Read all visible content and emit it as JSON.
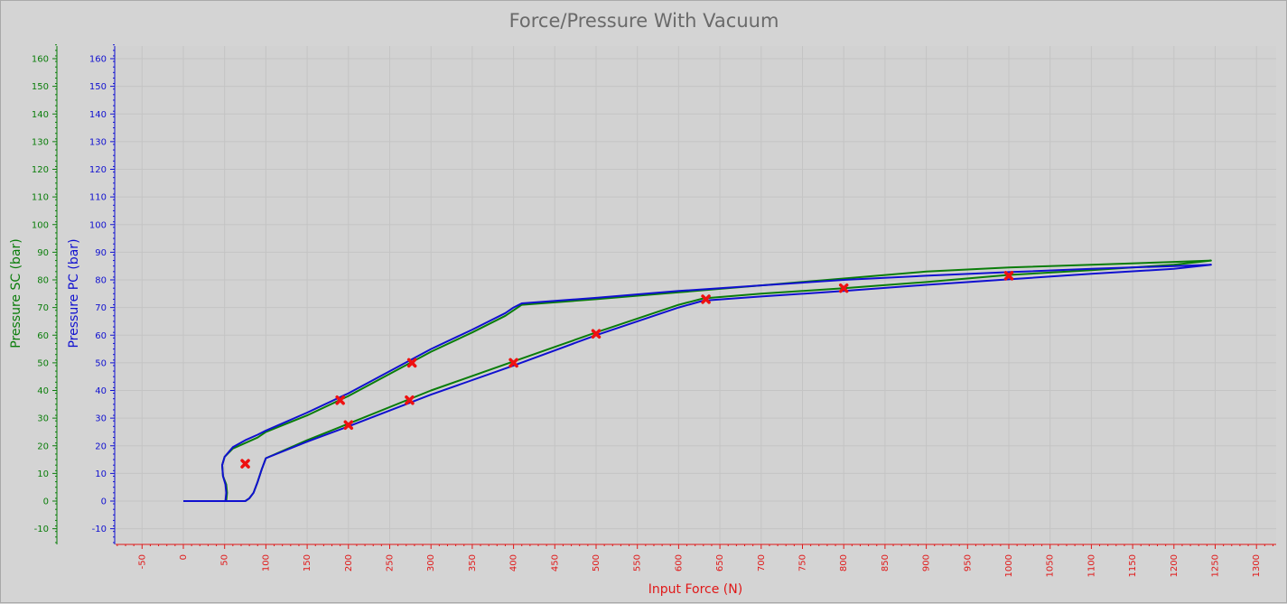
{
  "chart_data": {
    "type": "line",
    "title": "Force/Pressure With Vacuum",
    "xlabel": "Input Force (N)",
    "ylabel_left_outer": "Pressure SC (bar)",
    "ylabel_left_inner": "Pressure PC (bar)",
    "xlim": [
      -80,
      1340
    ],
    "ylim": [
      -15,
      165
    ],
    "x_ticks": [
      -50,
      0,
      50,
      100,
      150,
      200,
      250,
      300,
      350,
      400,
      450,
      500,
      550,
      600,
      650,
      700,
      750,
      800,
      850,
      900,
      950,
      1000,
      1050,
      1100,
      1150,
      1200,
      1250,
      1300
    ],
    "y_ticks": [
      -10,
      0,
      10,
      20,
      30,
      40,
      50,
      60,
      70,
      80,
      90,
      100,
      110,
      120,
      130,
      140,
      150,
      160
    ],
    "grid": true,
    "colors": {
      "sc": "#0a7d0a",
      "pc": "#1010d0",
      "x_axis": "#e01818",
      "markers": "#ee1111",
      "title": "#6a6a6a"
    },
    "series": [
      {
        "axis": "sc",
        "x": [
          0,
          40,
          52,
          53,
          52,
          48,
          47,
          50,
          60,
          75,
          90,
          100,
          150,
          200,
          250,
          300,
          350,
          390,
          400,
          410,
          500,
          600,
          700,
          800,
          900,
          1000,
          1100,
          1200,
          1245,
          1200,
          1100,
          1000,
          900,
          800,
          700,
          630,
          600,
          500,
          400,
          300,
          200,
          150,
          100,
          95,
          90,
          85,
          80,
          75,
          70,
          55,
          0
        ],
        "y": [
          0,
          0,
          0,
          3,
          6,
          9,
          13,
          16,
          19,
          21,
          23,
          25,
          31,
          38,
          46,
          54,
          61,
          67,
          69,
          71,
          73,
          75.5,
          78,
          80.5,
          83,
          84.5,
          85.5,
          86.5,
          87,
          85.5,
          83.5,
          81.8,
          79.2,
          77,
          75,
          73.3,
          71,
          61,
          50.5,
          40,
          28,
          22,
          15.5,
          11.5,
          7,
          3,
          1,
          0,
          0,
          0,
          0
        ]
      },
      {
        "axis": "pc",
        "x": [
          0,
          40,
          51,
          52,
          51,
          48,
          47,
          50,
          60,
          75,
          90,
          100,
          150,
          200,
          250,
          300,
          350,
          390,
          400,
          410,
          500,
          600,
          700,
          800,
          900,
          1000,
          1100,
          1200,
          1245,
          1200,
          1100,
          1000,
          900,
          800,
          700,
          630,
          600,
          500,
          400,
          300,
          200,
          150,
          100,
          95,
          90,
          85,
          80,
          75,
          70,
          55,
          0
        ],
        "y": [
          0,
          0,
          0,
          3,
          6,
          9,
          13,
          16,
          19.5,
          22,
          24,
          25.5,
          32,
          39,
          47,
          55,
          62,
          68,
          70,
          71.5,
          73.5,
          76,
          78,
          80,
          81.5,
          82.8,
          84,
          85,
          85.5,
          84,
          82.2,
          80.2,
          78.2,
          76,
          74,
          72.5,
          70,
          60,
          49,
          38.5,
          27,
          21.5,
          15.5,
          11.5,
          7,
          3,
          1,
          0,
          0,
          0,
          0
        ]
      }
    ],
    "markers": {
      "x": [
        75,
        190,
        277,
        200,
        274,
        400,
        500,
        633,
        800,
        1000
      ],
      "y": [
        13.5,
        36.5,
        50,
        27.5,
        36.5,
        50,
        60.5,
        73,
        77,
        81.5
      ]
    }
  }
}
